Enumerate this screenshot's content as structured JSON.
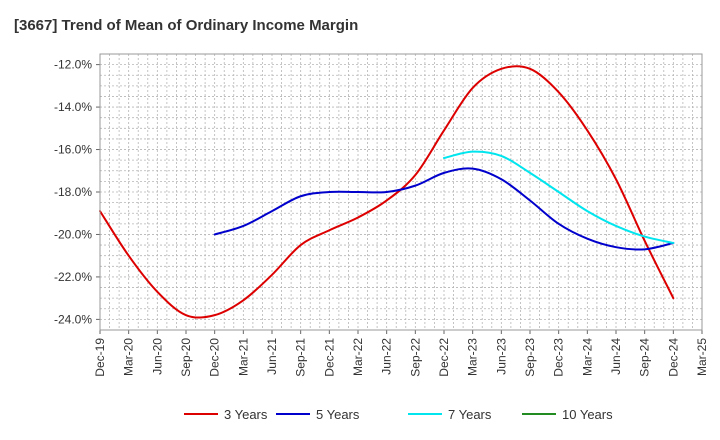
{
  "chart_data": {
    "type": "line",
    "title": "[3667]  Trend of Mean of Ordinary Income Margin",
    "xlabel": "",
    "ylabel": "",
    "y_unit": "%",
    "ylim": [
      -24.5,
      -11.5
    ],
    "y_ticks": [
      -12.0,
      -14.0,
      -16.0,
      -18.0,
      -20.0,
      -22.0,
      -24.0
    ],
    "y_tick_labels": [
      "-12.0%",
      "-14.0%",
      "-16.0%",
      "-18.0%",
      "-20.0%",
      "-22.0%",
      "-24.0%"
    ],
    "x_tick_labels": [
      "Dec-19",
      "Mar-20",
      "Jun-20",
      "Sep-20",
      "Dec-20",
      "Mar-21",
      "Jun-21",
      "Sep-21",
      "Dec-21",
      "Mar-22",
      "Jun-22",
      "Sep-22",
      "Dec-22",
      "Mar-23",
      "Jun-23",
      "Sep-23",
      "Dec-23",
      "Mar-24",
      "Jun-24",
      "Sep-24",
      "Dec-24",
      "Mar-25"
    ],
    "grid": true,
    "legend_position": "bottom",
    "series": [
      {
        "name": "3 Years",
        "color": "#dd0000",
        "x": [
          "Dec-19",
          "Mar-20",
          "Jun-20",
          "Sep-20",
          "Dec-20",
          "Mar-21",
          "Jun-21",
          "Sep-21",
          "Dec-21",
          "Mar-22",
          "Jun-22",
          "Sep-22",
          "Dec-22",
          "Mar-23",
          "Jun-23",
          "Sep-23",
          "Dec-23",
          "Mar-24",
          "Jun-24",
          "Sep-24",
          "Dec-24"
        ],
        "values": [
          -18.9,
          -21.0,
          -22.7,
          -23.8,
          -23.8,
          -23.1,
          -21.9,
          -20.5,
          -19.8,
          -19.2,
          -18.4,
          -17.2,
          -15.1,
          -13.1,
          -12.2,
          -12.2,
          -13.3,
          -15.1,
          -17.4,
          -20.3,
          -23.0
        ]
      },
      {
        "name": "5 Years",
        "color": "#0000cc",
        "x": [
          "Dec-20",
          "Mar-21",
          "Jun-21",
          "Sep-21",
          "Dec-21",
          "Mar-22",
          "Jun-22",
          "Sep-22",
          "Dec-22",
          "Mar-23",
          "Jun-23",
          "Sep-23",
          "Dec-23",
          "Mar-24",
          "Jun-24",
          "Sep-24",
          "Dec-24"
        ],
        "values": [
          -20.0,
          -19.6,
          -18.9,
          -18.2,
          -18.0,
          -18.0,
          -18.0,
          -17.7,
          -17.1,
          -16.9,
          -17.4,
          -18.4,
          -19.5,
          -20.2,
          -20.6,
          -20.7,
          -20.4
        ]
      },
      {
        "name": "7 Years",
        "color": "#00e5ee",
        "x": [
          "Dec-22",
          "Mar-23",
          "Jun-23",
          "Sep-23",
          "Dec-23",
          "Mar-24",
          "Jun-24",
          "Sep-24",
          "Dec-24"
        ],
        "values": [
          -16.4,
          -16.1,
          -16.3,
          -17.1,
          -18.0,
          -18.9,
          -19.6,
          -20.1,
          -20.4
        ]
      },
      {
        "name": "10 Years",
        "color": "#228b22",
        "x": [],
        "values": []
      }
    ]
  }
}
